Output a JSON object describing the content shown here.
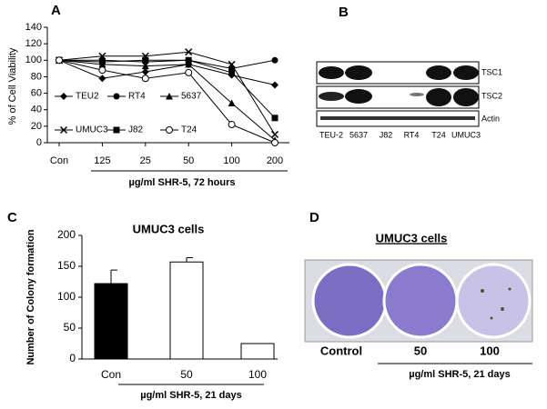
{
  "chart_data": [
    {
      "type": "line",
      "panel": "A",
      "xlabel": "µg/ml SHR-5, 72 hours",
      "ylabel": "% of Cell Viability",
      "categories": [
        "Con",
        "125",
        "25",
        "50",
        "100",
        "200"
      ],
      "ylim": [
        0,
        140
      ],
      "yticks": [
        0,
        20,
        40,
        60,
        80,
        100,
        120,
        140
      ],
      "series": [
        {
          "name": "TEU2",
          "marker": "diamond",
          "color": "#000000",
          "values": [
            100,
            78,
            86,
            95,
            82,
            70
          ]
        },
        {
          "name": "RT4",
          "marker": "circle",
          "color": "#000000",
          "values": [
            100,
            100,
            98,
            100,
            90,
            100
          ]
        },
        {
          "name": "5637",
          "marker": "triangle",
          "color": "#000000",
          "values": [
            100,
            95,
            93,
            95,
            48,
            3
          ]
        },
        {
          "name": "UMUC3",
          "marker": "x",
          "color": "#000000",
          "values": [
            100,
            105,
            105,
            110,
            95,
            10
          ]
        },
        {
          "name": "J82",
          "marker": "square",
          "color": "#000000",
          "values": [
            100,
            98,
            100,
            100,
            85,
            30
          ]
        },
        {
          "name": "T24",
          "marker": "open-circle",
          "color": "#000000",
          "values": [
            100,
            88,
            78,
            85,
            22,
            0
          ]
        }
      ]
    },
    {
      "type": "bar",
      "panel": "C",
      "title": "UMUC3 cells",
      "xlabel": "µg/ml SHR-5, 21 days",
      "ylabel": "Number of Colony formation",
      "categories": [
        "Con",
        "50",
        "100"
      ],
      "values": [
        122,
        157,
        25
      ],
      "errors": [
        22,
        7,
        0
      ],
      "colors": [
        "#000000",
        "#ffffff",
        "#ffffff"
      ],
      "ylim": [
        0,
        200
      ],
      "yticks": [
        0,
        50,
        100,
        150,
        200
      ]
    }
  ],
  "blot": {
    "panel": "B",
    "lanes": [
      "TEU-2",
      "5637",
      "J82",
      "RT4",
      "T24",
      "UMUC3"
    ],
    "proteins": [
      "TSC1",
      "TSC2",
      "Actin"
    ]
  },
  "colony_image": {
    "panel": "D",
    "title": "UMUC3 cells",
    "labels": [
      "Control",
      "50",
      "100"
    ],
    "xlabel": "µg/ml SHR-5, 21 days"
  }
}
